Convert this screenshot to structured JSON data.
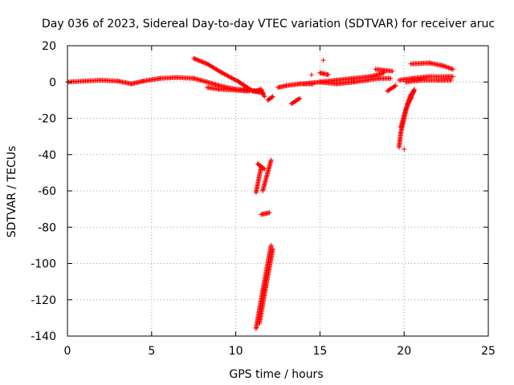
{
  "chart_data": {
    "type": "scatter",
    "title": "Day 036 of 2023, Sidereal Day-to-day VTEC variation (SDTVAR) for receiver aruc",
    "xlabel": "GPS time / hours",
    "ylabel": "SDTVAR / TECUs",
    "xlim": [
      0,
      25
    ],
    "ylim": [
      -140,
      20
    ],
    "xticks": [
      "0",
      "5",
      "10",
      "15",
      "20",
      "25"
    ],
    "yticks": [
      "20",
      "0",
      "-20",
      "-40",
      "-60",
      "-80",
      "-100",
      "-120",
      "-140"
    ],
    "grid": true,
    "marker": "+",
    "color": "#ff0000",
    "segments": [
      [
        [
          0.0,
          0.0
        ],
        [
          1.0,
          0.5
        ],
        [
          2.0,
          1.0
        ],
        [
          3.0,
          0.5
        ],
        [
          3.8,
          -1.0
        ],
        [
          4.5,
          0.5
        ],
        [
          5.5,
          2.0
        ],
        [
          6.5,
          2.5
        ],
        [
          7.5,
          2.0
        ],
        [
          8.3,
          0.0
        ],
        [
          9.0,
          -2.0
        ],
        [
          10.0,
          -4.0
        ],
        [
          11.5,
          -5.0
        ]
      ],
      [
        [
          7.5,
          13.0
        ],
        [
          8.3,
          10.0
        ],
        [
          9.2,
          5.0
        ],
        [
          10.2,
          0.0
        ],
        [
          11.0,
          -5.0
        ],
        [
          11.6,
          -6.0
        ]
      ],
      [
        [
          8.3,
          -3.0
        ],
        [
          9.0,
          -4.0
        ],
        [
          10.0,
          -4.5
        ],
        [
          10.8,
          -5.0
        ]
      ],
      [
        [
          11.2,
          -5.0
        ],
        [
          11.5,
          -4.0
        ],
        [
          11.7,
          -8.0
        ]
      ],
      [
        [
          11.9,
          -10.0
        ],
        [
          12.2,
          -8.0
        ]
      ],
      [
        [
          12.5,
          -3.0
        ],
        [
          13.0,
          -2.0
        ],
        [
          13.8,
          -1.0
        ],
        [
          14.6,
          -1.0
        ]
      ],
      [
        [
          13.3,
          -12.0
        ],
        [
          13.8,
          -9.0
        ]
      ],
      [
        [
          14.0,
          -1.0
        ],
        [
          15.0,
          0.0
        ],
        [
          16.0,
          -1.0
        ],
        [
          17.0,
          0.0
        ],
        [
          17.8,
          1.0
        ],
        [
          18.5,
          2.0
        ],
        [
          19.2,
          2.0
        ]
      ],
      [
        [
          15.0,
          0.0
        ],
        [
          16.0,
          1.0
        ],
        [
          17.0,
          2.0
        ],
        [
          18.0,
          3.0
        ],
        [
          18.8,
          5.0
        ]
      ],
      [
        [
          15.0,
          5.0
        ],
        [
          15.5,
          4.0
        ]
      ],
      [
        [
          18.3,
          7.0
        ],
        [
          19.3,
          6.0
        ]
      ],
      [
        [
          19.0,
          -5.0
        ],
        [
          19.5,
          -2.0
        ]
      ],
      [
        [
          19.7,
          1.0
        ],
        [
          20.5,
          2.0
        ],
        [
          21.5,
          3.0
        ],
        [
          22.5,
          3.0
        ],
        [
          22.9,
          3.0
        ]
      ],
      [
        [
          20.1,
          0.0
        ],
        [
          21.0,
          1.0
        ],
        [
          22.0,
          1.0
        ],
        [
          22.8,
          1.0
        ]
      ],
      [
        [
          20.4,
          10.0
        ],
        [
          21.5,
          10.5
        ],
        [
          22.3,
          9.0
        ],
        [
          22.9,
          7.0
        ]
      ],
      [
        [
          19.7,
          -36.0
        ],
        [
          19.8,
          -28.0
        ],
        [
          20.0,
          -20.0
        ],
        [
          20.2,
          -12.0
        ],
        [
          20.4,
          -7.0
        ],
        [
          20.6,
          -5.0
        ]
      ],
      [
        [
          19.8,
          -25.0
        ],
        [
          20.1,
          -15.0
        ],
        [
          20.4,
          -9.0
        ],
        [
          20.6,
          -4.0
        ]
      ],
      [
        [
          11.2,
          -61.0
        ],
        [
          11.5,
          -47.0
        ]
      ],
      [
        [
          11.6,
          -60.0
        ],
        [
          12.1,
          -43.0
        ]
      ],
      [
        [
          11.3,
          -45.0
        ],
        [
          11.7,
          -48.0
        ]
      ],
      [
        [
          11.5,
          -73.0
        ],
        [
          12.0,
          -72.0
        ]
      ],
      [
        [
          11.2,
          -136.0
        ],
        [
          11.6,
          -115.0
        ],
        [
          12.1,
          -90.0
        ]
      ],
      [
        [
          11.4,
          -133.0
        ],
        [
          11.8,
          -112.0
        ],
        [
          12.2,
          -92.0
        ]
      ]
    ],
    "points": [
      [
        15.2,
        12.0
      ],
      [
        15.0,
        5.0
      ],
      [
        14.5,
        4.0
      ],
      [
        10.5,
        -4.0
      ],
      [
        20.0,
        -37.0
      ]
    ]
  }
}
